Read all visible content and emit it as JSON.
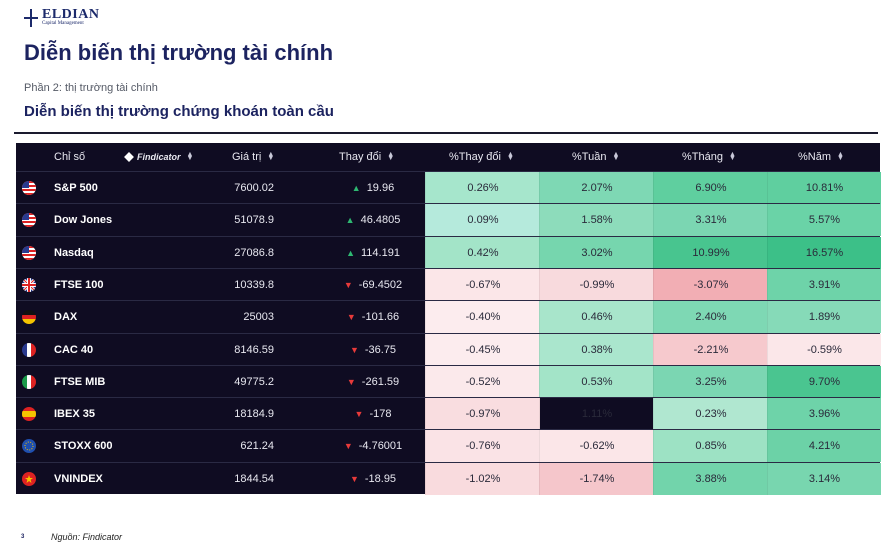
{
  "brand": {
    "name": "ELDIAN",
    "tagline": "Capital Management"
  },
  "page_title": "Diễn biến thị trường tài chính",
  "subtitle": "Phần 2: thị trường tài chính",
  "section_title": "Diễn biến thị trường chứng khoán toàn cầu",
  "table": {
    "headers": {
      "index": "Chỉ số",
      "provider": "Findicator",
      "value": "Giá trị",
      "change": "Thay đổi",
      "pct_change": "%Thay đổi",
      "pct_week": "%Tuần",
      "pct_month": "%Tháng",
      "pct_year": "%Năm"
    },
    "rows": [
      {
        "flag": "us-flag-icon",
        "name": "S&P 500",
        "value": "7600.02",
        "change": "19.96",
        "dir": "up",
        "pct": "0.26%",
        "week": "2.07%",
        "month": "6.90%",
        "year": "10.81%",
        "c_pct": "#a6e6cc",
        "c_week": "#7ed8b4",
        "c_month": "#5fcf9f",
        "c_year": "#5fcf9f"
      },
      {
        "flag": "us-flag-icon",
        "name": "Dow Jones",
        "value": "51078.9",
        "change": "46.4805",
        "dir": "up",
        "pct": "0.09%",
        "week": "1.58%",
        "month": "3.31%",
        "year": "5.57%",
        "c_pct": "#b5eadc",
        "c_week": "#8ddcbb",
        "c_month": "#7bd6b2",
        "c_year": "#6ad3a7"
      },
      {
        "flag": "us-flag-icon",
        "name": "Nasdaq",
        "value": "27086.8",
        "change": "114.191",
        "dir": "up",
        "pct": "0.42%",
        "week": "3.02%",
        "month": "10.99%",
        "year": "16.57%",
        "c_pct": "#a3e4c8",
        "c_week": "#76d6ae",
        "c_month": "#48c58f",
        "c_year": "#3cc088"
      },
      {
        "flag": "uk-flag-icon",
        "name": "FTSE 100",
        "value": "10339.8",
        "change": "-69.4502",
        "dir": "down",
        "pct": "-0.67%",
        "week": "-0.99%",
        "month": "-3.07%",
        "year": "3.91%",
        "c_pct": "#fbe6e8",
        "c_week": "#f8dadd",
        "c_month": "#f2aeb4",
        "c_year": "#6ed3a9"
      },
      {
        "flag": "de-flag-icon",
        "name": "DAX",
        "value": "25003",
        "change": "-101.66",
        "dir": "down",
        "pct": "-0.40%",
        "week": "0.46%",
        "month": "2.40%",
        "year": "1.89%",
        "c_pct": "#fcecee",
        "c_week": "#a8e5cb",
        "c_month": "#7ed8b4",
        "c_year": "#86dab8"
      },
      {
        "flag": "fr-flag-icon",
        "name": "CAC 40",
        "value": "8146.59",
        "change": "-36.75",
        "dir": "down",
        "pct": "-0.45%",
        "week": "0.38%",
        "month": "-2.21%",
        "year": "-0.59%",
        "c_pct": "#fcecee",
        "c_week": "#aae6cd",
        "c_month": "#f6c9cd",
        "c_year": "#fbe7e9"
      },
      {
        "flag": "it-flag-icon",
        "name": "FTSE MIB",
        "value": "49775.2",
        "change": "-261.59",
        "dir": "down",
        "pct": "-0.52%",
        "week": "0.53%",
        "month": "3.25%",
        "year": "9.70%",
        "c_pct": "#fbe9eb",
        "c_week": "#a3e4c8",
        "c_month": "#7bd6b2",
        "c_year": "#4ac590"
      },
      {
        "flag": "es-flag-icon",
        "name": "IBEX 35",
        "value": "18184.9",
        "change": "-178",
        "dir": "down",
        "pct": "-0.97%",
        "week": "1.11%",
        "month": "0.23%",
        "year": "3.96%",
        "c_pct": "#f9dde0",
        "c_week": "#92deb ",
        "c_month": "#b0e7d0",
        "c_year": "#6ed3a9"
      },
      {
        "flag": "eu-flag-icon",
        "name": "STOXX 600",
        "value": "621.24",
        "change": "-4.76001",
        "dir": "down",
        "pct": "-0.76%",
        "week": "-0.62%",
        "month": "0.85%",
        "year": "4.21%",
        "c_pct": "#fae3e6",
        "c_week": "#fbe6e8",
        "c_month": "#9de2c4",
        "c_year": "#6cd2a7"
      },
      {
        "flag": "vn-flag-icon",
        "name": "VNINDEX",
        "value": "1844.54",
        "change": "-18.95",
        "dir": "down",
        "pct": "-1.02%",
        "week": "-1.74%",
        "month": "3.88%",
        "year": "3.14%",
        "c_pct": "#f9dbde",
        "c_week": "#f5c6cb",
        "c_month": "#72d4ab",
        "c_year": "#78d6af"
      }
    ]
  },
  "footer": {
    "page_number": "3",
    "source": "Nguồn: Findicator"
  }
}
